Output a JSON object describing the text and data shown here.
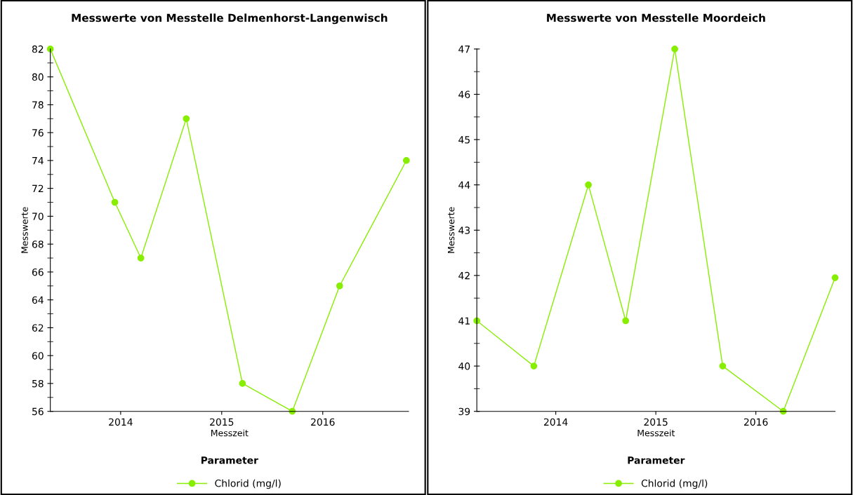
{
  "chart_data": [
    {
      "type": "line",
      "title": "Messwerte von Messtelle Delmenhorst-Langenwisch",
      "xlabel": "Messzeit",
      "ylabel": "Messwerte",
      "legend_title": "Parameter",
      "legend": "bottom",
      "marker": "circle",
      "line_style": "solid",
      "grid": false,
      "x": [
        "2013-04-22",
        "2013-12-11",
        "2014-03-15",
        "2014-08-26",
        "2015-03-17",
        "2015-09-13",
        "2016-03-02",
        "2016-10-29"
      ],
      "series": [
        {
          "name": "Chlorid (mg/l)",
          "color": "#88ee00",
          "values": [
            82,
            71,
            67,
            77,
            58,
            56,
            65,
            74
          ]
        }
      ],
      "xlim": [
        "2013-04-22",
        "2016-11-06"
      ],
      "xticks": [
        {
          "value": "2014-01-01",
          "label": "2014"
        },
        {
          "value": "2015-01-01",
          "label": "2015"
        },
        {
          "value": "2016-01-01",
          "label": "2016"
        }
      ],
      "ylim": [
        56,
        82
      ],
      "yticks": [
        56,
        58,
        60,
        62,
        64,
        66,
        68,
        70,
        72,
        74,
        76,
        78,
        80,
        82
      ]
    },
    {
      "type": "line",
      "title": "Messwerte von Messtelle Moordeich",
      "xlabel": "Messzeit",
      "ylabel": "Messwerte",
      "legend_title": "Parameter",
      "legend": "bottom",
      "marker": "circle",
      "line_style": "solid",
      "grid": false,
      "x": [
        "2013-03-19",
        "2013-10-13",
        "2014-04-30",
        "2014-09-13",
        "2015-03-11",
        "2015-09-02",
        "2016-04-10",
        "2016-10-16"
      ],
      "series": [
        {
          "name": "Chlorid (mg/l)",
          "color": "#88ee00",
          "values": [
            41,
            40,
            44,
            41,
            47,
            40,
            39,
            41.95
          ]
        }
      ],
      "xlim": [
        "2013-03-19",
        "2016-10-16"
      ],
      "xticks": [
        {
          "value": "2014-01-01",
          "label": "2014"
        },
        {
          "value": "2015-01-01",
          "label": "2015"
        },
        {
          "value": "2016-01-01",
          "label": "2016"
        }
      ],
      "ylim": [
        39,
        47
      ],
      "yticks": [
        39,
        40,
        41,
        42,
        43,
        44,
        45,
        46,
        47
      ]
    }
  ]
}
